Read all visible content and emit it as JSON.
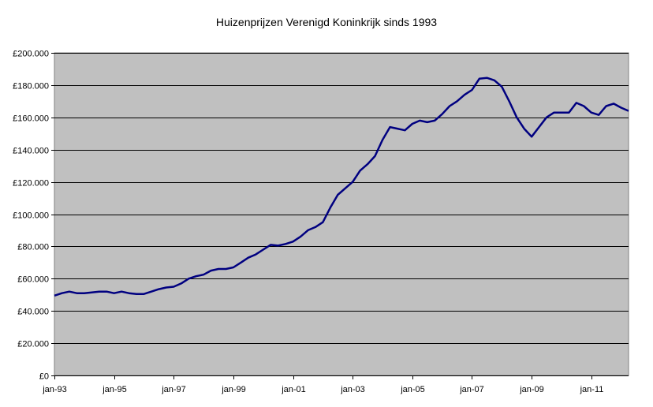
{
  "chart_data": {
    "type": "line",
    "title": "Huizenprijzen Verenigd Koninkrijk sinds 1993",
    "xlabel": "",
    "ylabel": "",
    "ylim": [
      0,
      200000
    ],
    "y_ticks": [
      0,
      20000,
      40000,
      60000,
      80000,
      100000,
      120000,
      140000,
      160000,
      180000,
      200000
    ],
    "y_tick_labels": [
      "£0",
      "£20.000",
      "£40.000",
      "£60.000",
      "£80.000",
      "£100.000",
      "£120.000",
      "£140.000",
      "£160.000",
      "£180.000",
      "£200.000"
    ],
    "x_range": [
      "1993-01",
      "2012-04"
    ],
    "x_ticks": [
      "1993-01",
      "1995-01",
      "1997-01",
      "1999-01",
      "2001-01",
      "2003-01",
      "2005-01",
      "2007-01",
      "2009-01",
      "2011-01"
    ],
    "x_tick_labels": [
      "jan-93",
      "jan-95",
      "jan-97",
      "jan-99",
      "jan-01",
      "jan-03",
      "jan-05",
      "jan-07",
      "jan-09",
      "jan-11"
    ],
    "grid": true,
    "legend": "none",
    "plot_background": "#c0c0c0",
    "line_color": "#000080",
    "series": [
      {
        "x": [
          "1993-01",
          "1993-04",
          "1993-07",
          "1993-10",
          "1994-01",
          "1994-04",
          "1994-07",
          "1994-10",
          "1995-01",
          "1995-04",
          "1995-07",
          "1995-10",
          "1996-01",
          "1996-04",
          "1996-07",
          "1996-10",
          "1997-01",
          "1997-04",
          "1997-07",
          "1997-10",
          "1998-01",
          "1998-04",
          "1998-07",
          "1998-10",
          "1999-01",
          "1999-04",
          "1999-07",
          "1999-10",
          "2000-01",
          "2000-04",
          "2000-07",
          "2000-10",
          "2001-01",
          "2001-04",
          "2001-07",
          "2001-10",
          "2002-01",
          "2002-04",
          "2002-07",
          "2002-10",
          "2003-01",
          "2003-04",
          "2003-07",
          "2003-10",
          "2004-01",
          "2004-04",
          "2004-07",
          "2004-10",
          "2005-01",
          "2005-04",
          "2005-07",
          "2005-10",
          "2006-01",
          "2006-04",
          "2006-07",
          "2006-10",
          "2007-01",
          "2007-04",
          "2007-07",
          "2007-10",
          "2008-01",
          "2008-04",
          "2008-07",
          "2008-10",
          "2009-01",
          "2009-04",
          "2009-07",
          "2009-10",
          "2010-01",
          "2010-04",
          "2010-07",
          "2010-10",
          "2011-01",
          "2011-04",
          "2011-07",
          "2011-10",
          "2012-01",
          "2012-04"
        ],
        "values": [
          49500,
          51000,
          52000,
          51000,
          51000,
          51500,
          52000,
          52000,
          51000,
          52000,
          51000,
          50500,
          50500,
          52000,
          53500,
          54500,
          55000,
          57000,
          60000,
          61500,
          62500,
          65000,
          66000,
          66000,
          67000,
          70000,
          73000,
          75000,
          78000,
          81000,
          80500,
          81500,
          83000,
          86000,
          90000,
          92000,
          95000,
          104000,
          112000,
          116000,
          120000,
          127000,
          131000,
          136000,
          146000,
          154000,
          153000,
          152000,
          156000,
          158000,
          157000,
          158000,
          162000,
          167000,
          170000,
          174000,
          177000,
          184000,
          184500,
          183000,
          179000,
          170000,
          160000,
          153000,
          148000,
          154000,
          160000,
          163000,
          163000,
          163000,
          169000,
          167000,
          163000,
          161500,
          167000,
          168500,
          166000,
          164000
        ]
      }
    ]
  }
}
